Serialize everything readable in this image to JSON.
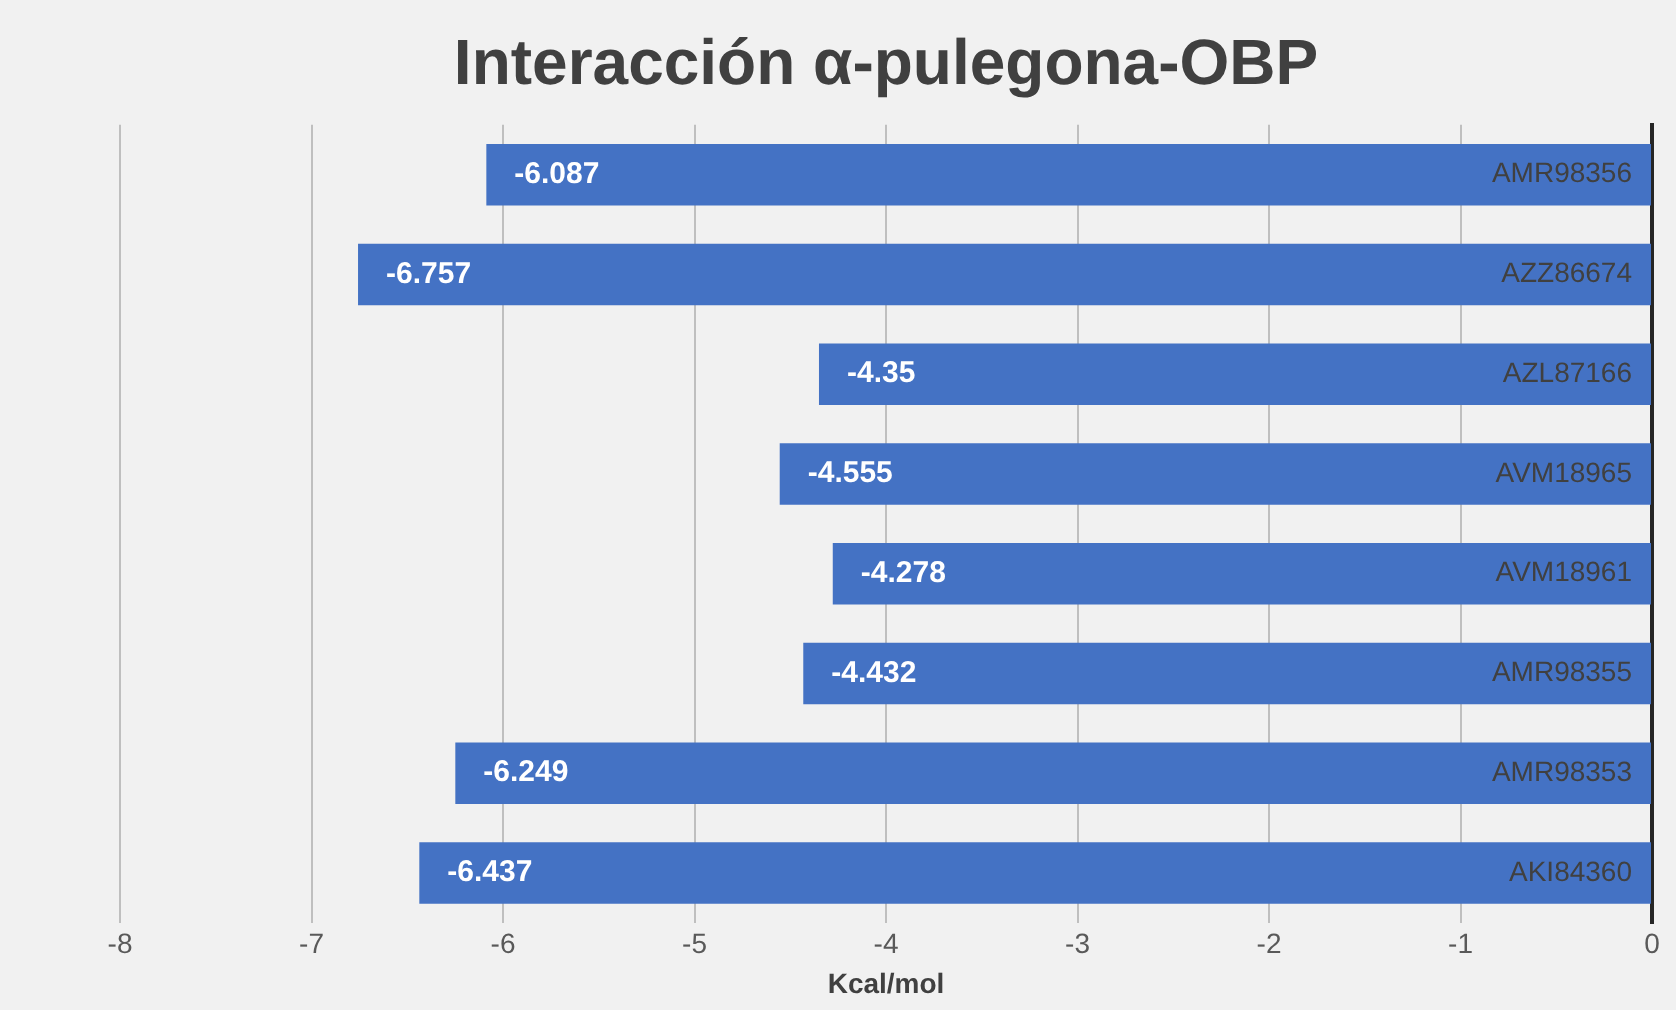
{
  "chart_data": {
    "type": "bar",
    "orientation": "horizontal",
    "title": "Interacción α-pulegona-OBP",
    "xlabel": "Kcal/mol",
    "categories": [
      "AMR98356",
      "AZZ86674",
      "AZL87166",
      "AVM18965",
      "AVM18961",
      "AMR98355",
      "AMR98353",
      "AKI84360"
    ],
    "values": [
      -6.087,
      -6.757,
      -4.35,
      -4.555,
      -4.278,
      -4.432,
      -6.249,
      -6.437
    ],
    "color": "#4472c4",
    "xlim": [
      -8,
      0
    ],
    "xticks": [
      -8,
      -7,
      -6,
      -5,
      -4,
      -3,
      -2,
      -1,
      0
    ],
    "grid": "x",
    "data_labels": true
  }
}
